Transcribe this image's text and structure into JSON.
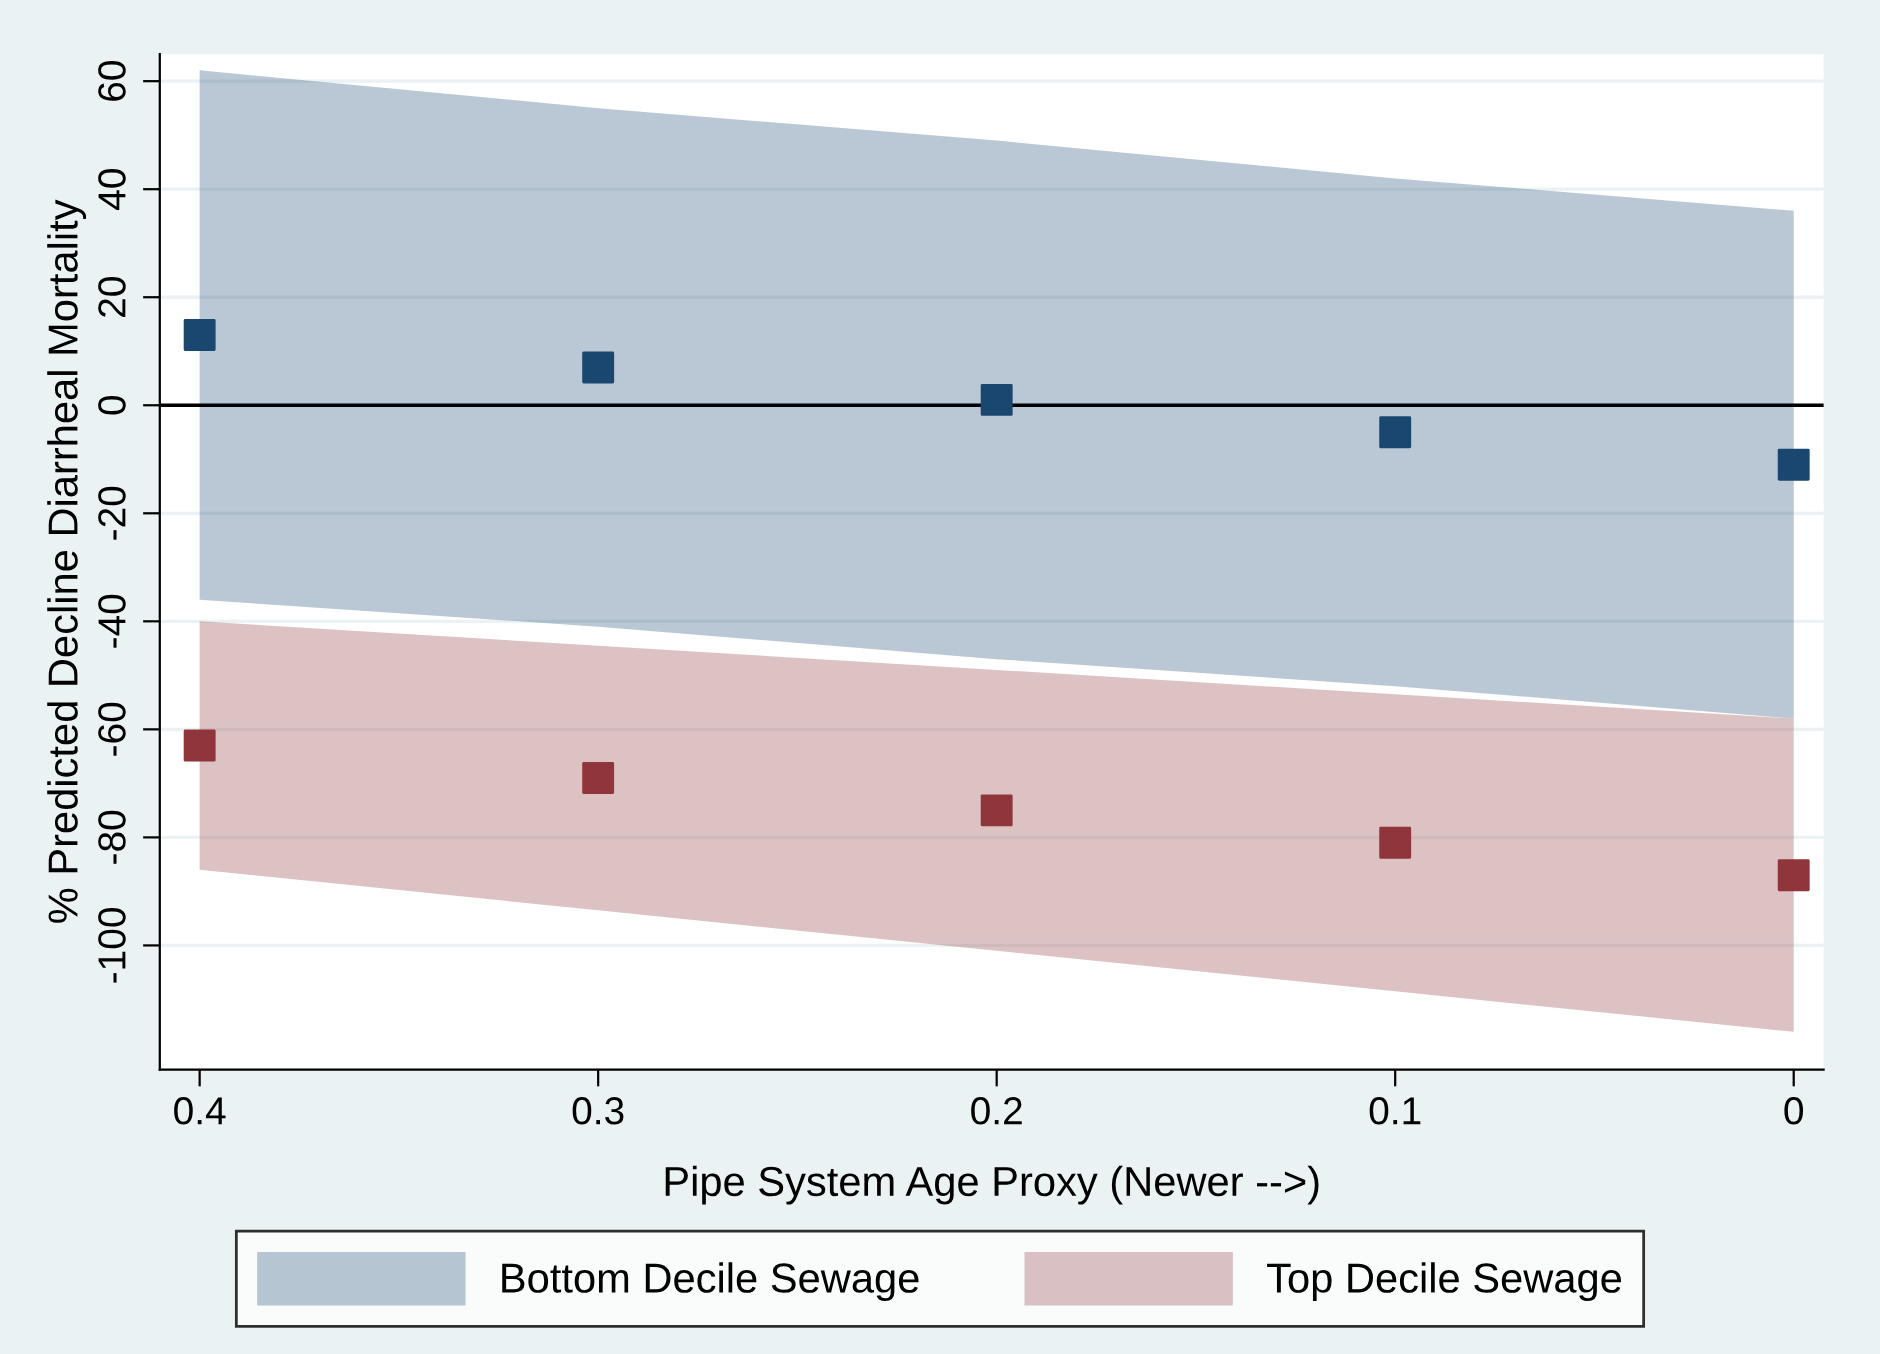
{
  "chart_data": {
    "type": "scatter",
    "xlabel": "Pipe System Age Proxy (Newer -->)",
    "ylabel": "% Predicted Decline Diarrheal Mortality",
    "x": [
      0.4,
      0.3,
      0.2,
      0.1,
      0
    ],
    "series": [
      {
        "name": "Bottom Decile Sewage",
        "color": "#1a476f",
        "values": [
          13,
          7,
          1,
          -5,
          -11
        ],
        "lower": [
          -36,
          -41,
          -47,
          -52,
          -58
        ],
        "upper": [
          62,
          55,
          49,
          42,
          36
        ]
      },
      {
        "name": "Top Decile Sewage",
        "color": "#90353b",
        "values": [
          -63,
          -69,
          -75,
          -81,
          -87
        ],
        "lower": [
          -86,
          -93.5,
          -101,
          -108.5,
          -116
        ],
        "upper": [
          -40,
          -44.5,
          -49,
          -53.5,
          -58
        ]
      }
    ],
    "xlim": [
      0.41,
      -0.0075
    ],
    "ylim": [
      -123,
      65
    ],
    "xticks": [
      0.4,
      0.3,
      0.2,
      0.1,
      0
    ],
    "yticks": [
      -100,
      -80,
      -60,
      -40,
      -20,
      0,
      20,
      40,
      60
    ],
    "ref_lines": [
      {
        "axis": "y",
        "value": 0,
        "color": "#000000"
      }
    ],
    "grid": "y",
    "legend": "bottom",
    "marker": "square"
  }
}
